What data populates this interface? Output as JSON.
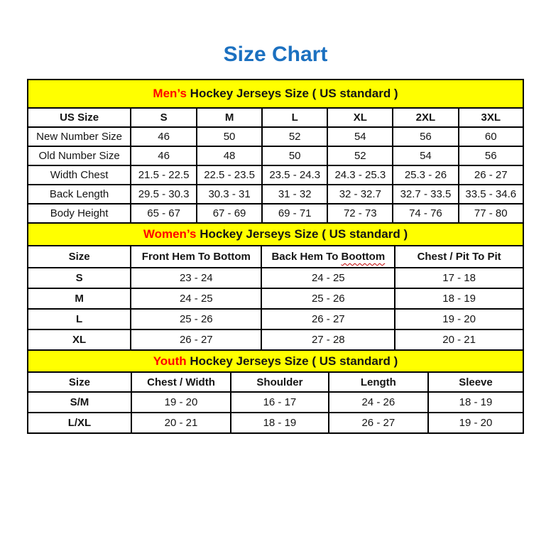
{
  "page": {
    "title": "Size Chart"
  },
  "colors": {
    "title_blue": "#1b70c0",
    "band_yellow": "#ffff00",
    "highlight_red": "#ff0000",
    "squiggle_red": "#c00000",
    "grid_black": "#000000"
  },
  "chart_data": [
    {
      "id": "men",
      "type": "table",
      "title": {
        "highlight": "Men’s",
        "rest": " Hockey Jerseys Size ( US standard )"
      },
      "columns": [
        "US Size",
        "S",
        "M",
        "L",
        "XL",
        "2XL",
        "3XL"
      ],
      "col_widths": [
        "20.8%",
        "13.3%",
        "13.2%",
        "13.2%",
        "13.2%",
        "13.2%",
        "13.1%"
      ],
      "bold_labels": false,
      "rows": [
        {
          "label": "New Number Size",
          "cells": [
            "46",
            "50",
            "52",
            "54",
            "56",
            "60"
          ]
        },
        {
          "label": "Old Number Size",
          "cells": [
            "46",
            "48",
            "50",
            "52",
            "54",
            "56"
          ]
        },
        {
          "label": "Width Chest",
          "cells": [
            "21.5 - 22.5",
            "22.5 - 23.5",
            "23.5 - 24.3",
            "24.3 - 25.3",
            "25.3 - 26",
            "26 - 27"
          ]
        },
        {
          "label": "Back Length",
          "cells": [
            "29.5 - 30.3",
            "30.3 - 31",
            "31 - 32",
            "32 - 32.7",
            "32.7 - 33.5",
            "33.5 - 34.6"
          ]
        },
        {
          "label": "Body Height",
          "cells": [
            "65 - 67",
            "67 - 69",
            "69 - 71",
            "72 - 73",
            "74 - 76",
            "77 - 80"
          ]
        }
      ]
    },
    {
      "id": "women",
      "type": "table",
      "title": {
        "highlight": "Women’s",
        "rest": " Hockey Jerseys Size ( US standard )"
      },
      "columns": [
        "Size",
        "Front Hem To Bottom",
        {
          "text": "Back Hem To ",
          "wavy": "Boottom"
        },
        "Chest / Pit To Pit"
      ],
      "col_widths": [
        "20.8%",
        "26.4%",
        "26.9%",
        "25.9%"
      ],
      "bold_labels": true,
      "rows": [
        {
          "label": "S",
          "cells": [
            "23 - 24",
            "24 - 25",
            "17 - 18"
          ]
        },
        {
          "label": "M",
          "cells": [
            "24 - 25",
            "25 - 26",
            "18 - 19"
          ]
        },
        {
          "label": "L",
          "cells": [
            "25 - 26",
            "26 - 27",
            "19 - 20"
          ]
        },
        {
          "label": "XL",
          "cells": [
            "26 - 27",
            "27 - 28",
            "20 - 21"
          ]
        }
      ]
    },
    {
      "id": "youth",
      "type": "table",
      "title": {
        "highlight": "Youth",
        "rest": " Hockey Jerseys Size ( US standard )"
      },
      "columns": [
        "Size",
        "Chest / Width",
        "Shoulder",
        "Length",
        "Sleeve"
      ],
      "col_widths": [
        "20.9%",
        "20.1%",
        "19.7%",
        "20.1%",
        "19.2%"
      ],
      "bold_labels": true,
      "rows": [
        {
          "label": "S/M",
          "cells": [
            "19 - 20",
            "16 - 17",
            "24 - 26",
            "18 - 19"
          ]
        },
        {
          "label": "L/XL",
          "cells": [
            "20 - 21",
            "18 - 19",
            "26 - 27",
            "19 - 20"
          ]
        }
      ]
    }
  ]
}
